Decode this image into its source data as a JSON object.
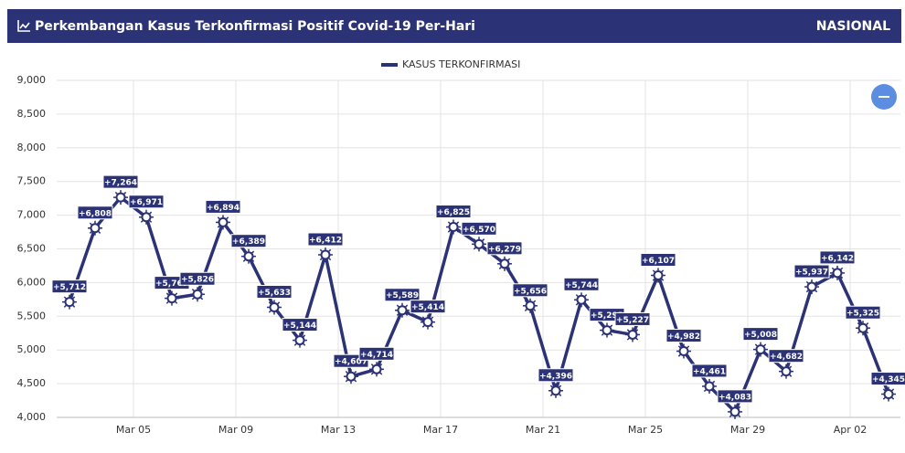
{
  "header": {
    "title": "Perkembangan Kasus Terkonfirmasi Positif Covid-19 Per-Hari",
    "scope": "NASIONAL"
  },
  "chart_data": {
    "type": "line",
    "categories": [
      null,
      null,
      null,
      "Mar 05",
      null,
      null,
      null,
      "Mar 09",
      null,
      null,
      null,
      "Mar 13",
      null,
      null,
      null,
      "Mar 17",
      null,
      null,
      null,
      "Mar 21",
      null,
      null,
      null,
      "Mar 25",
      null,
      null,
      null,
      "Mar 29",
      null,
      null,
      null,
      "Apr 02",
      null
    ],
    "series": [
      {
        "name": "KASUS TERKONFIRMASI",
        "color": "#2b3275",
        "values": [
          5712,
          6808,
          7264,
          6971,
          5767,
          5826,
          6894,
          6389,
          5633,
          5144,
          6412,
          4607,
          4714,
          5589,
          5414,
          6825,
          6570,
          6279,
          5656,
          4396,
          5744,
          5293,
          5227,
          6107,
          4982,
          4461,
          4083,
          5008,
          4682,
          5937,
          6142,
          5325,
          4345
        ],
        "value_labels": [
          "+5,712",
          "+6,808",
          "+7,264",
          "+6,971",
          "+5,767",
          "+5,826",
          "+6,894",
          "+6,389",
          "+5,633",
          "+5,144",
          "+6,412",
          "+4,607",
          "+4,714",
          "+5,589",
          "+5,414",
          "+6,825",
          "+6,570",
          "+6,279",
          "+5,656",
          "+4,396",
          "+5,744",
          "+5,293",
          "+5,227",
          "+6,107",
          "+4,982",
          "+4,461",
          "+4,083",
          "+5,008",
          "+4,682",
          "+5,937",
          "+6,142",
          "+5,325",
          "+4,345"
        ]
      }
    ],
    "ylim": [
      4000,
      9000
    ],
    "yticks": [
      {
        "value": 4000,
        "label": "4,000"
      },
      {
        "value": 4500,
        "label": "4,500"
      },
      {
        "value": 5000,
        "label": "5,000"
      },
      {
        "value": 5500,
        "label": "5,500"
      },
      {
        "value": 6000,
        "label": "6,000"
      },
      {
        "value": 6500,
        "label": "6,500"
      },
      {
        "value": 7000,
        "label": "7,000"
      },
      {
        "value": 7500,
        "label": "7,500"
      },
      {
        "value": 8000,
        "label": "8,000"
      },
      {
        "value": 8500,
        "label": "8,500"
      },
      {
        "value": 9000,
        "label": "9,000"
      }
    ],
    "grid": true
  }
}
